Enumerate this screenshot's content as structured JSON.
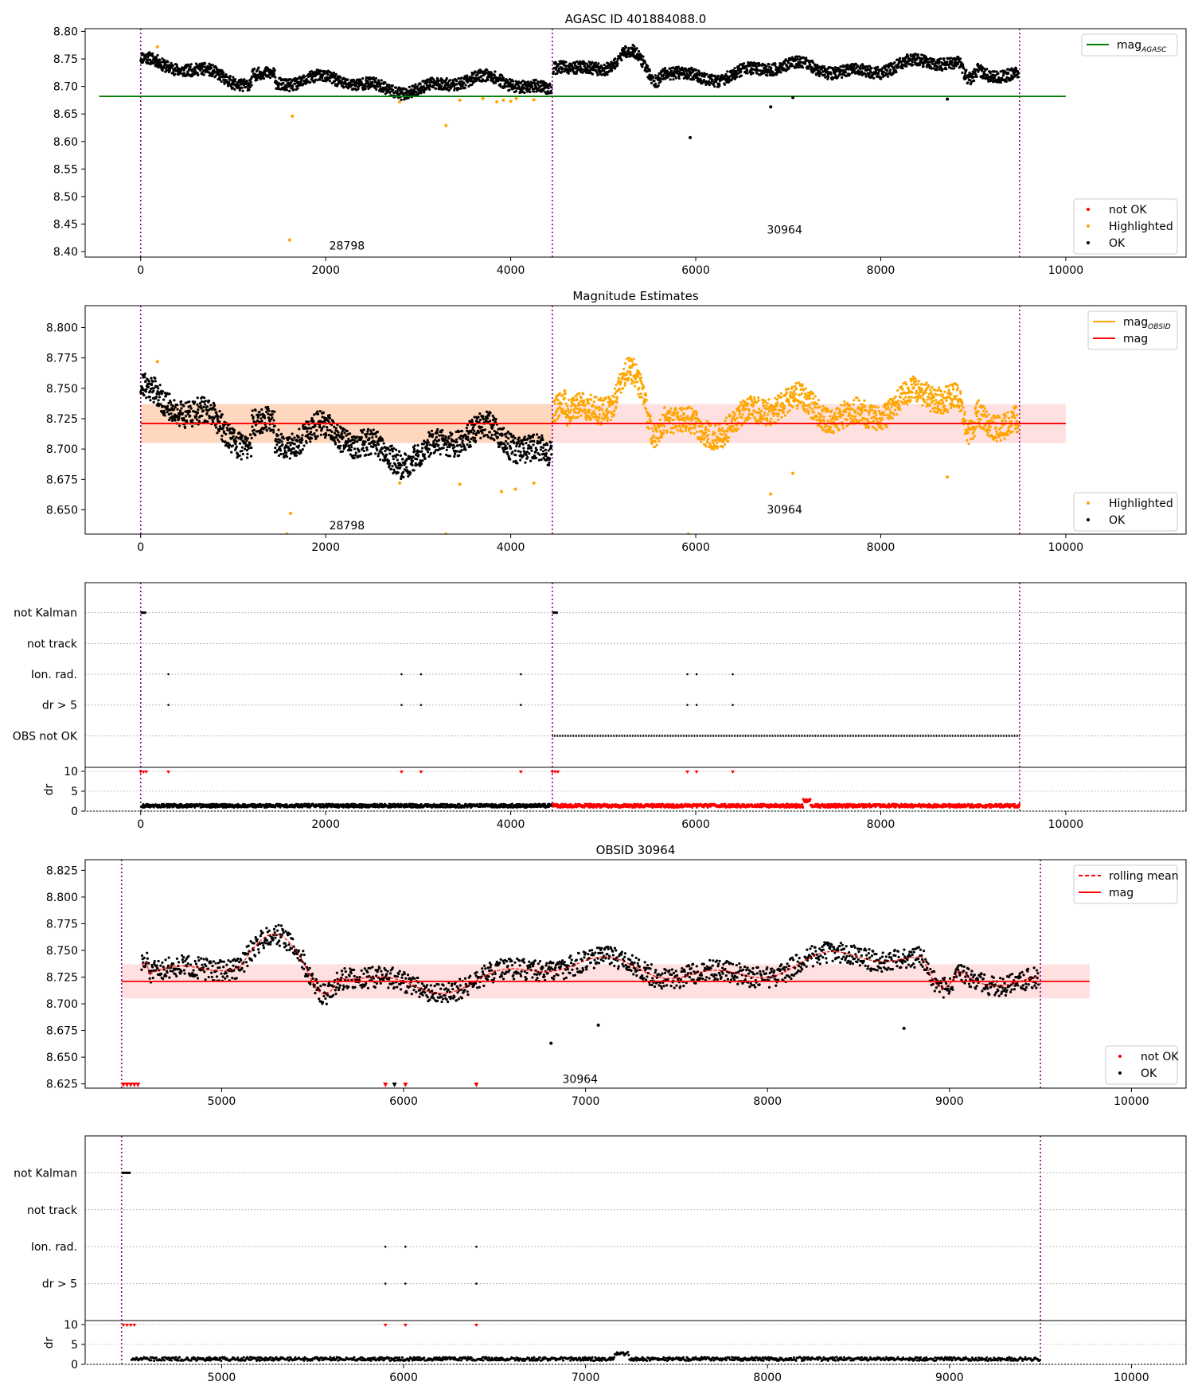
{
  "chart_data": [
    {
      "type": "scatter",
      "title": "AGASC ID 401884088.0",
      "xlim": [
        -600,
        11300
      ],
      "ylim": [
        8.39,
        8.805
      ],
      "xticks": [
        0,
        2000,
        4000,
        6000,
        8000,
        10000
      ],
      "yticks": [
        8.4,
        8.45,
        8.5,
        8.55,
        8.6,
        8.65,
        8.7,
        8.75,
        8.8
      ],
      "ytick_decimals": 2,
      "obsid_boundaries": [
        0,
        4450,
        9500
      ],
      "obsid_labels": [
        {
          "text": "28798",
          "x": 2230,
          "y": 8.404
        },
        {
          "text": "30964",
          "x": 6960,
          "y": 8.433
        }
      ],
      "hlines": [
        {
          "name": "mag_AGASC",
          "y": 8.682,
          "x": [
            -450,
            10000
          ],
          "color": "#008000"
        }
      ],
      "series": [
        {
          "name": "not OK",
          "color": "#ff0000",
          "points": []
        },
        {
          "name": "Highlighted",
          "color": "#ffa500",
          "points": [
            [
              180,
              8.772
            ],
            [
              1610,
              8.421
            ],
            [
              1640,
              8.646
            ],
            [
              3300,
              8.629
            ],
            [
              2800,
              8.672
            ],
            [
              3450,
              8.675
            ],
            [
              3700,
              8.678
            ],
            [
              3850,
              8.672
            ],
            [
              3920,
              8.675
            ],
            [
              4000,
              8.673
            ],
            [
              4060,
              8.678
            ],
            [
              4250,
              8.676
            ]
          ]
        },
        {
          "name": "OK",
          "color": "#000000",
          "points": [
            [
              5940,
              8.607
            ],
            [
              6810,
              8.663
            ],
            [
              7050,
              8.68
            ],
            [
              8720,
              8.677
            ]
          ]
        }
      ],
      "legend_upper": [
        {
          "label": "mag",
          "sub": "AGASC",
          "color": "#008000",
          "kind": "line"
        }
      ],
      "legend_lower": [
        {
          "label": "not OK",
          "color": "#ff0000",
          "kind": "dot"
        },
        {
          "label": "Highlighted",
          "color": "#ffa500",
          "kind": "dot"
        },
        {
          "label": "OK",
          "color": "#000000",
          "kind": "dot"
        }
      ]
    },
    {
      "type": "scatter",
      "title": "Magnitude Estimates",
      "xlim": [
        -600,
        11300
      ],
      "ylim": [
        8.63,
        8.818
      ],
      "xticks": [
        0,
        2000,
        4000,
        6000,
        8000,
        10000
      ],
      "yticks": [
        8.65,
        8.675,
        8.7,
        8.725,
        8.75,
        8.775,
        8.8
      ],
      "ytick_decimals": 3,
      "obsid_boundaries": [
        0,
        4450,
        9500
      ],
      "obsid_labels": [
        {
          "text": "28798",
          "x": 2230,
          "y": 8.634
        },
        {
          "text": "30964",
          "x": 6960,
          "y": 8.647
        }
      ],
      "mag_line": 8.721,
      "mag_band": [
        8.705,
        8.737
      ],
      "obsid_mag_segments": [
        {
          "x": [
            0,
            4450
          ],
          "y": 8.721
        },
        {
          "x": [
            4450,
            9500
          ],
          "y": 8.721
        }
      ],
      "series": [
        {
          "name": "Highlighted",
          "color": "#ffa500",
          "points": [
            [
              180,
              8.772
            ],
            [
              1620,
              8.647
            ],
            [
              2800,
              8.672
            ],
            [
              3450,
              8.671
            ],
            [
              3900,
              8.665
            ],
            [
              4050,
              8.667
            ],
            [
              4250,
              8.672
            ],
            [
              6810,
              8.663
            ],
            [
              7050,
              8.68
            ],
            [
              8720,
              8.677
            ],
            [
              1580,
              8.63
            ],
            [
              5920,
              8.63
            ],
            [
              3300,
              8.63
            ]
          ]
        },
        {
          "name": "OK",
          "color": "#000000",
          "points": []
        }
      ],
      "legend_upper": [
        {
          "label": "mag",
          "sub": "OBSID",
          "color": "#ffa500",
          "kind": "line"
        },
        {
          "label": "mag",
          "sub": "",
          "color": "#ff0000",
          "kind": "line"
        }
      ],
      "legend_lower": [
        {
          "label": "Highlighted",
          "color": "#ffa500",
          "kind": "dot"
        },
        {
          "label": "OK",
          "color": "#000000",
          "kind": "dot"
        }
      ]
    },
    {
      "type": "scatter",
      "title": "",
      "xlim": [
        -600,
        11300
      ],
      "xticks": [
        0,
        2000,
        4000,
        6000,
        8000,
        10000
      ],
      "flag_rows": [
        "not Kalman",
        "not track",
        "Ion. rad.",
        "dr > 5",
        "OBS not OK"
      ],
      "flags": {
        "not Kalman": [
          [
            0,
            60
          ],
          [
            4450,
            4510
          ]
        ],
        "not track": [],
        "Ion. rad.": [
          300,
          2820,
          3030,
          4110,
          5910,
          6010,
          6400
        ],
        "dr > 5": [
          300,
          2820,
          3030,
          4110,
          5910,
          6010,
          6400
        ],
        "OBS not OK": [
          [
            4450,
            9500
          ]
        ]
      },
      "dr_ylim": [
        0,
        10
      ],
      "dr_yticks": [
        0,
        5,
        10
      ],
      "dr_ylabel": "dr",
      "dr_segments": [
        {
          "x": [
            0,
            4450
          ],
          "color": "#000000"
        },
        {
          "x": [
            4450,
            9500
          ],
          "color": "#ff0000"
        }
      ],
      "dr_clipped_markers": [
        0,
        30,
        60,
        300,
        2820,
        3030,
        4110,
        4450,
        4480,
        4510,
        5910,
        6010,
        6400
      ],
      "obsid_boundaries": [
        0,
        4450,
        9500
      ]
    },
    {
      "type": "scatter",
      "title": "OBSID 30964",
      "xlim": [
        4250,
        10300
      ],
      "ylim": [
        8.621,
        8.835
      ],
      "xticks": [
        5000,
        6000,
        7000,
        8000,
        9000,
        10000
      ],
      "yticks": [
        8.625,
        8.65,
        8.675,
        8.7,
        8.725,
        8.75,
        8.775,
        8.8,
        8.825
      ],
      "ytick_decimals": 3,
      "obsid_boundaries": [
        4450,
        9500
      ],
      "obsid_labels": [
        {
          "text": "30964",
          "x": 6970,
          "y": 8.626
        }
      ],
      "mag_line": 8.721,
      "mag_band": [
        8.705,
        8.737
      ],
      "mag_x": [
        4450,
        9770
      ],
      "series": [
        {
          "name": "not OK",
          "color": "#ff0000",
          "points": []
        },
        {
          "name": "OK",
          "color": "#000000",
          "points": [
            [
              6810,
              8.663
            ],
            [
              7070,
              8.68
            ],
            [
              8750,
              8.677
            ]
          ]
        }
      ],
      "clipped_markers": [
        {
          "x": 4460,
          "color": "#ff0000"
        },
        {
          "x": 4480,
          "color": "#ff0000"
        },
        {
          "x": 4500,
          "color": "#ff0000"
        },
        {
          "x": 4520,
          "color": "#ff0000"
        },
        {
          "x": 4540,
          "color": "#ff0000"
        },
        {
          "x": 5900,
          "color": "#ff0000"
        },
        {
          "x": 5950,
          "color": "#000000"
        },
        {
          "x": 6010,
          "color": "#ff0000"
        },
        {
          "x": 6400,
          "color": "#ff0000"
        }
      ],
      "legend_upper": [
        {
          "label": "rolling mean",
          "color": "#ff0000",
          "kind": "dashed"
        },
        {
          "label": "mag",
          "color": "#ff0000",
          "kind": "line"
        }
      ],
      "legend_lower": [
        {
          "label": "not OK",
          "color": "#ff0000",
          "kind": "dot"
        },
        {
          "label": "OK",
          "color": "#000000",
          "kind": "dot"
        }
      ]
    },
    {
      "type": "scatter",
      "title": "",
      "xlim": [
        4250,
        10300
      ],
      "xticks": [
        5000,
        6000,
        7000,
        8000,
        9000,
        10000
      ],
      "flag_rows": [
        "not Kalman",
        "not track",
        "Ion. rad.",
        "dr > 5"
      ],
      "flags": {
        "not Kalman": [
          [
            4450,
            4500
          ]
        ],
        "not track": [],
        "Ion. rad.": [
          5900,
          6010,
          6400
        ],
        "dr > 5": [
          5900,
          6010,
          6400
        ]
      },
      "dr_ylim": [
        0,
        10
      ],
      "dr_yticks": [
        0,
        5,
        10
      ],
      "dr_ylabel": "dr",
      "dr_segments": [
        {
          "x": [
            4500,
            9500
          ],
          "color": "#000000"
        }
      ],
      "dr_clipped_markers": [
        4460,
        4480,
        4500,
        4520,
        5900,
        6010,
        6400
      ],
      "obsid_boundaries": [
        4450,
        9500
      ]
    }
  ]
}
